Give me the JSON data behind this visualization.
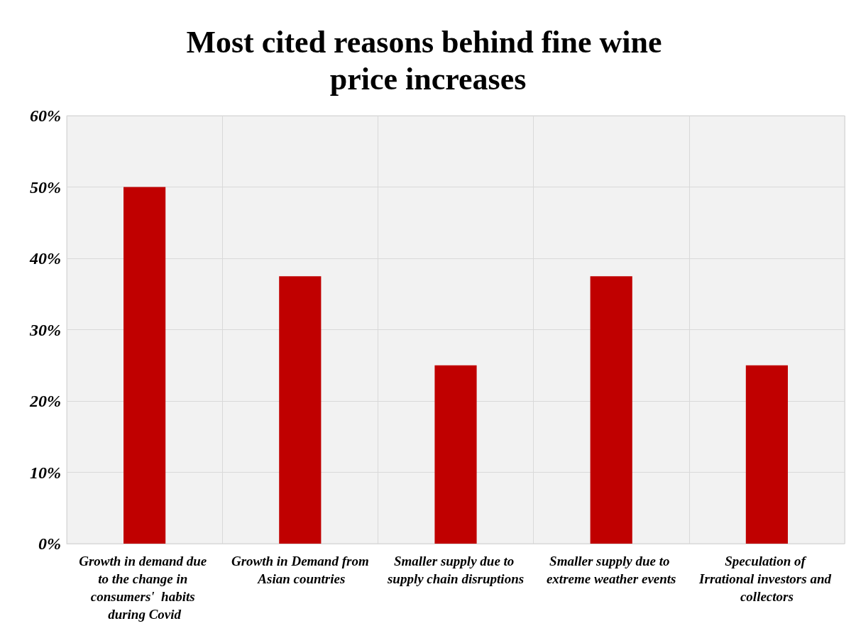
{
  "chart_data": {
    "type": "bar",
    "title": "Most cited reasons behind fine wine price increases",
    "categories": [
      "Growth in demand due to the change in consumers'  habits during Covid",
      "Growth in Demand from Asian countries",
      "Smaller supply due to supply chain disruptions",
      "Smaller supply due to extreme weather events",
      "Speculation of Irrational investors and collectors"
    ],
    "values": [
      50,
      37.5,
      25,
      37.5,
      25
    ],
    "color": "#c00000",
    "ylim": [
      0,
      60
    ],
    "yticks": [
      {
        "value": 0,
        "label": "0%"
      },
      {
        "value": 10,
        "label": "10%"
      },
      {
        "value": 20,
        "label": "20%"
      },
      {
        "value": 30,
        "label": "30%"
      },
      {
        "value": 40,
        "label": "40%"
      },
      {
        "value": 50,
        "label": "50%"
      },
      {
        "value": 60,
        "label": "60%"
      }
    ],
    "grid": true
  }
}
